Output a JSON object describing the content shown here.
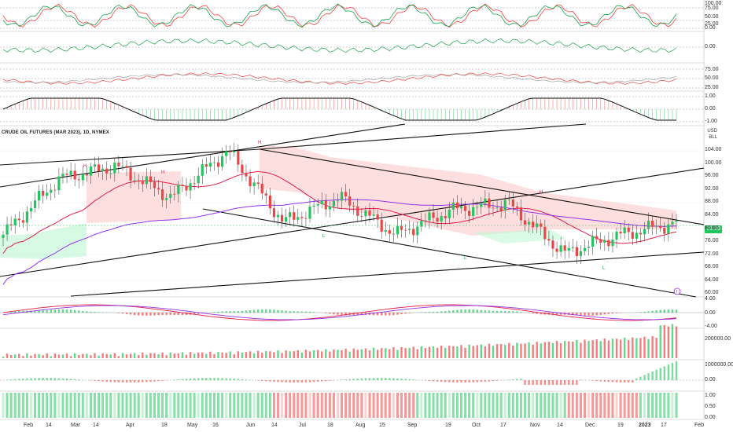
{
  "title": "CRUDE OIL FUTURES (MAR 2023), 1D, NYMEX",
  "currency_label": "USD",
  "unit_label": "BLL",
  "last_price_tag": "81.80",
  "colors": {
    "up": "#22c55e",
    "down": "#ef4444",
    "ma_red": "#e11d48",
    "ma_purple": "#9333ea",
    "trendline": "#111111",
    "cloud_red": "#fecaca",
    "cloud_green": "#bbf7d0"
  },
  "price_axis": [
    "104.00",
    "100.00",
    "96.00",
    "92.00",
    "88.00",
    "84.00",
    "80.00",
    "76.00",
    "72.00",
    "68.00",
    "64.00",
    "60.00"
  ],
  "panel1_axis": [
    "100.00",
    "75.00",
    "50.00",
    "25.00",
    "0.00"
  ],
  "panel2_axis": [
    "0.00"
  ],
  "panel3_axis": [
    "75.00",
    "50.00",
    "25.00"
  ],
  "panel4_axis": [
    "1.00",
    "0.00",
    "-1.00"
  ],
  "macd_axis": [
    "4.00",
    "0.00",
    "-4.00"
  ],
  "volume_axis": [
    "200000.00"
  ],
  "obv_axis": [
    "1000000.00",
    "0.00"
  ],
  "bars_axis": [
    "1.00",
    "0.50",
    "0.00"
  ],
  "time_axis": [
    "Feb",
    "14",
    "Mar",
    "14",
    "Apr",
    "18",
    "May",
    "16",
    "Jun",
    "14",
    "Jul",
    "18",
    "Aug",
    "15",
    "Sep",
    "19",
    "Oct",
    "17",
    "Nov",
    "14",
    "Dec",
    "19",
    "2023",
    "17",
    "Feb"
  ],
  "pivot_labels": {
    "h": "H",
    "l": "L"
  },
  "alert_icon": "alert-icon",
  "chart_data": {
    "type": "candlestick",
    "title": "CRUDE OIL FUTURES (MAR 2023), 1D, NYMEX",
    "ylabel": "USD",
    "ylim": [
      58,
      108
    ],
    "last": 81.8,
    "key_points": [
      {
        "x": "Feb",
        "y": 78
      },
      {
        "x": "Mar",
        "y": 96
      },
      {
        "x": "Apr",
        "y": 100
      },
      {
        "x": "May",
        "y": 90
      },
      {
        "x": "Jun",
        "y": 105
      },
      {
        "x": "Jul",
        "y": 82
      },
      {
        "x": "Aug",
        "y": 90
      },
      {
        "x": "Sep",
        "y": 78
      },
      {
        "x": "Oct",
        "y": 86
      },
      {
        "x": "Nov",
        "y": 88
      },
      {
        "x": "Dec",
        "y": 72
      },
      {
        "x": "2023",
        "y": 78
      },
      {
        "x": "17",
        "y": 81.8
      }
    ]
  }
}
